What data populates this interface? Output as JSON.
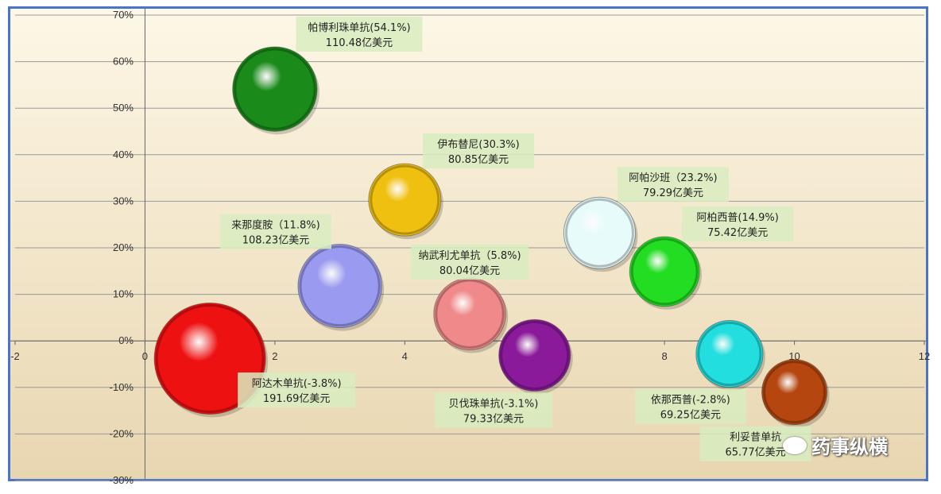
{
  "colors": {
    "frame": "#4a74c9",
    "bg_top": "#fdf7e6",
    "bg_bottom": "#e8d6b0",
    "grid": "#9a9a9a"
  },
  "chart_data": {
    "type": "bubble",
    "xlim": [
      -2,
      12
    ],
    "ylim": [
      -30,
      70
    ],
    "x_ticks": [
      "-2",
      "0",
      "2",
      "4",
      "6",
      "8",
      "10",
      "12"
    ],
    "y_ticks": [
      "70%",
      "60%",
      "50%",
      "40%",
      "30%",
      "20%",
      "10%",
      "0%",
      "-10%",
      "-20%",
      "-30%"
    ],
    "grid": "horizontal",
    "series": [
      {
        "x": 2,
        "y": 54.1,
        "size": 110.48,
        "color": "#1a8a1a",
        "label_name": "帕博利珠单抗(54.1%)",
        "label_value": "110.48亿美元",
        "label_pos": "top-right"
      },
      {
        "x": 4,
        "y": 30.3,
        "size": 80.85,
        "color": "#f0c010",
        "label_name": "伊布替尼(30.3%)",
        "label_value": "80.85亿美元",
        "label_pos": "top-right"
      },
      {
        "x": 7,
        "y": 23.2,
        "size": 79.29,
        "color": "#e8fbfb",
        "label_name": "阿帕沙班（23.2%)",
        "label_value": "79.29亿美元",
        "label_pos": "top-right"
      },
      {
        "x": 3,
        "y": 11.8,
        "size": 108.23,
        "color": "#9a9af0",
        "label_name": "来那度胺（11.8%)",
        "label_value": "108.23亿美元",
        "label_pos": "top-left"
      },
      {
        "x": 5,
        "y": 5.8,
        "size": 80.04,
        "color": "#f08a8a",
        "label_name": "纳武利尤单抗（5.8%)",
        "label_value": "80.04亿美元",
        "label_pos": "top"
      },
      {
        "x": 8,
        "y": 14.9,
        "size": 75.42,
        "color": "#22dd22",
        "label_name": "阿柏西普(14.9%)",
        "label_value": "75.42亿美元",
        "label_pos": "top-right"
      },
      {
        "x": 1,
        "y": -3.8,
        "size": 191.69,
        "color": "#ee1111",
        "label_name": "阿达木单抗(-3.8%)",
        "label_value": "191.69亿美元",
        "label_pos": "bottom-right"
      },
      {
        "x": 6,
        "y": -3.1,
        "size": 79.33,
        "color": "#8a1a9a",
        "label_name": "贝伐珠单抗(-3.1%)",
        "label_value": "79.33亿美元",
        "label_pos": "bottom-left"
      },
      {
        "x": 9,
        "y": -2.8,
        "size": 69.25,
        "color": "#22dede",
        "label_name": "依那西普(-2.8%)",
        "label_value": "69.25亿美元",
        "label_pos": "bottom-left"
      },
      {
        "x": 10,
        "y": -11,
        "size": 65.77,
        "color": "#b5460f",
        "label_name": "利妥昔单抗",
        "label_value": "65.77亿美元",
        "label_pos": "bottom-left"
      }
    ]
  },
  "watermark": {
    "text": "药事纵横",
    "icon": "wechat-icon"
  }
}
